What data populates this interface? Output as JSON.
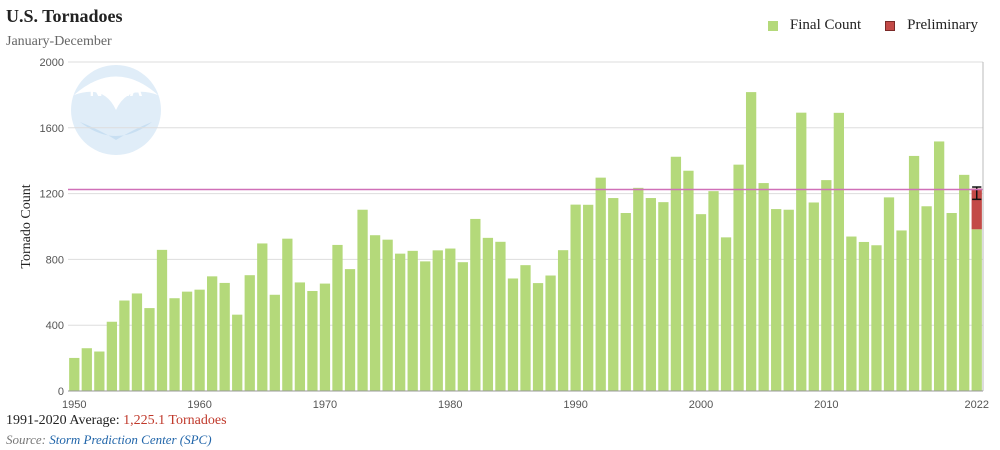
{
  "header": {
    "title": "U.S. Tornadoes",
    "subtitle": "January-December"
  },
  "legend": {
    "final_label": "Final Count",
    "preliminary_label": "Preliminary"
  },
  "footer": {
    "average_prefix": "1991-2020 Average: ",
    "average_value": "1,225.1 Tornadoes",
    "source_prefix": "Source: ",
    "source_name": "Storm Prediction Center (SPC)"
  },
  "logo": {
    "text": "NOAA"
  },
  "colors": {
    "final": "#b4d97a",
    "preliminary": "#c34a47",
    "average_line": "#d070b8",
    "grid": "#dddddd"
  },
  "chart_data": {
    "type": "bar",
    "ylabel": "Tornado Count",
    "ylim": [
      0,
      2000
    ],
    "yticks": [
      0,
      400,
      800,
      1200,
      1600,
      2000
    ],
    "xticks": [
      1950,
      1960,
      1970,
      1980,
      1990,
      2000,
      2010,
      2022
    ],
    "average": 1225.1,
    "series": [
      {
        "name": "Final Count",
        "x": [
          1950,
          1951,
          1952,
          1953,
          1954,
          1955,
          1956,
          1957,
          1958,
          1959,
          1960,
          1961,
          1962,
          1963,
          1964,
          1965,
          1966,
          1967,
          1968,
          1969,
          1970,
          1971,
          1972,
          1973,
          1974,
          1975,
          1976,
          1977,
          1978,
          1979,
          1980,
          1981,
          1982,
          1983,
          1984,
          1985,
          1986,
          1987,
          1988,
          1989,
          1990,
          1991,
          1992,
          1993,
          1994,
          1995,
          1996,
          1997,
          1998,
          1999,
          2000,
          2001,
          2002,
          2003,
          2004,
          2005,
          2006,
          2007,
          2008,
          2009,
          2010,
          2011,
          2012,
          2013,
          2014,
          2015,
          2016,
          2017,
          2018,
          2019,
          2020,
          2021,
          2022
        ],
        "values": [
          201,
          260,
          240,
          421,
          550,
          593,
          504,
          858,
          564,
          604,
          616,
          697,
          657,
          464,
          704,
          897,
          585,
          926,
          660,
          608,
          653,
          888,
          741,
          1102,
          947,
          920,
          835,
          852,
          788,
          855,
          866,
          783,
          1046,
          931,
          907,
          684,
          765,
          656,
          702,
          856,
          1133,
          1132,
          1297,
          1173,
          1082,
          1235,
          1173,
          1148,
          1424,
          1339,
          1075,
          1215,
          934,
          1376,
          1817,
          1264,
          1106,
          1102,
          1692,
          1146,
          1282,
          1691,
          939,
          906,
          886,
          1177,
          976,
          1429,
          1123,
          1517,
          1082,
          1314,
          983
        ]
      },
      {
        "name": "Preliminary",
        "x": [
          2022
        ],
        "values": [
          1231
        ],
        "range": [
          1165,
          1240
        ]
      }
    ]
  }
}
